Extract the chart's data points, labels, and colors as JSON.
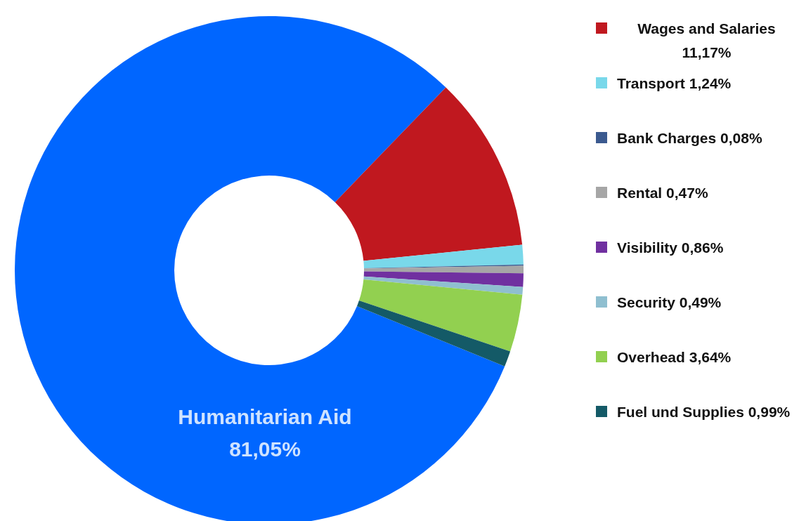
{
  "chart_data": {
    "type": "donut",
    "categories": [
      "Humanitarian Aid",
      "Wages and Salaries",
      "Transport",
      "Bank Charges",
      "Rental",
      "Visibility",
      "Security",
      "Overhead",
      "Fuel und Supplies"
    ],
    "values": [
      81.05,
      11.17,
      1.24,
      0.08,
      0.47,
      0.86,
      0.49,
      3.64,
      0.99
    ],
    "value_labels": [
      "81,05%",
      "11,17%",
      "1,24%",
      "0,08%",
      "0,47%",
      "0,86%",
      "0,49%",
      "3,64%",
      "0,99%"
    ],
    "colors": [
      "#0066ff",
      "#c0181f",
      "#79d8ea",
      "#3b5a8f",
      "#a6a6a6",
      "#7030a0",
      "#8fbfd0",
      "#92d050",
      "#145a67"
    ],
    "legend": "right"
  }
}
